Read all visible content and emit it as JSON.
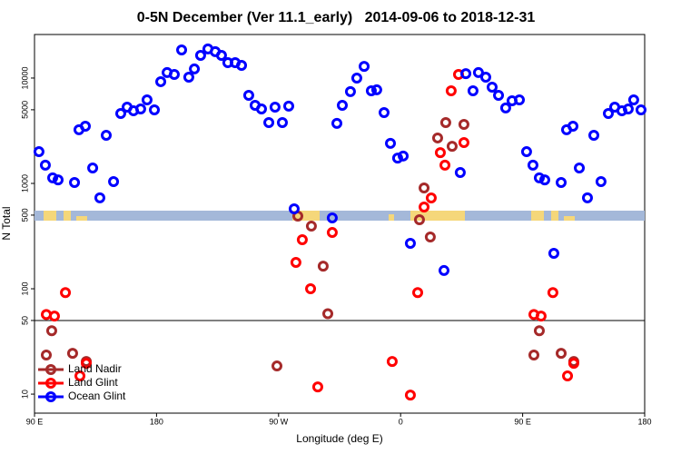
{
  "chart_data": {
    "type": "scatter",
    "title": "0-5N December (Ver 11.1_early)   2014-09-06 to 2018-12-31",
    "x_label": "Longitude (deg E)",
    "y_label": "N Total",
    "xlim": [
      90,
      540
    ],
    "xticks": [
      {
        "value": 90,
        "label": "90 E"
      },
      180,
      {
        "value": 270,
        "label": "90 W"
      },
      {
        "value": 360,
        "label": "0"
      },
      {
        "value": 450,
        "label": "90 E"
      },
      {
        "value": 540,
        "label": "180"
      }
    ],
    "ylim": [
      6.6,
      25900
    ],
    "y_scale": "log",
    "yticks": [
      10,
      50,
      100,
      500,
      1000,
      5000,
      10000
    ],
    "hline": 50,
    "legend": "lower left",
    "series": [
      {
        "name": "Land Nadir",
        "color": "#a52a2a",
        "x": [
          98.7,
          102.7,
          118.1,
          128.2,
          268.8,
          284.2,
          294.2,
          302.9,
          306.3,
          373.9,
          377.3,
          381.9,
          387.3,
          393.3,
          398.0,
          406.7,
          458.3,
          462.3,
          478.4,
          487.7
        ],
        "values": [
          23.5,
          40,
          24.4,
          20.4,
          18.5,
          489,
          393,
          164,
          58,
          452,
          906,
          310,
          2700,
          3780,
          2250,
          3630,
          23.5,
          40,
          24.4,
          20.4
        ]
      },
      {
        "name": "Land Glint",
        "color": "#ff0000",
        "x": [
          98.7,
          104.7,
          112.8,
          123.5,
          128.2,
          282.8,
          287.5,
          293.6,
          298.9,
          309.6,
          353.8,
          367.2,
          372.6,
          377.3,
          382.6,
          389.3,
          392.7,
          397.3,
          402.7,
          406.7,
          458.3,
          463.6,
          472.3,
          483.1,
          487.7
        ],
        "values": [
          57,
          55,
          92,
          14.9,
          19.6,
          178,
          292,
          100,
          11.7,
          342,
          20.4,
          9.8,
          92,
          597,
          728,
          1960,
          1490,
          7570,
          10820,
          2440,
          57,
          55,
          92,
          14.9,
          19.6
        ]
      },
      {
        "name": "Ocean Glint",
        "color": "#0000ff",
        "x": [
          93.3,
          98.0,
          103.4,
          107.4,
          119.5,
          122.8,
          127.5,
          132.9,
          138.2,
          142.9,
          148.3,
          153.6,
          158.3,
          163.0,
          168.3,
          173.0,
          178.4,
          183.1,
          187.8,
          193.1,
          198.5,
          203.8,
          207.9,
          212.5,
          217.9,
          223.3,
          227.9,
          232.6,
          238.0,
          242.7,
          248.0,
          252.7,
          257.4,
          262.8,
          267.4,
          272.8,
          277.5,
          281.5,
          309.6,
          313.0,
          317.0,
          323.0,
          327.7,
          333.1,
          338.4,
          342.4,
          347.8,
          352.5,
          357.8,
          361.9,
          367.2,
          392.0,
          404.0,
          408.1,
          413.4,
          417.4,
          422.8,
          427.5,
          432.2,
          437.5,
          442.2,
          447.6,
          452.9,
          457.6,
          462.3,
          466.3,
          473.0,
          478.4,
          482.4,
          487.1,
          491.8,
          497.8,
          502.5,
          507.8,
          513.2,
          517.9,
          523.2,
          527.9,
          531.9,
          537.3
        ],
        "values": [
          2000,
          1490,
          1130,
          1080,
          1020,
          3230,
          3490,
          1400,
          730,
          2860,
          1040,
          4610,
          5300,
          4890,
          5090,
          6210,
          4990,
          9240,
          11270,
          10820,
          18500,
          10200,
          12200,
          16400,
          18900,
          17800,
          16400,
          14000,
          14000,
          13200,
          6860,
          5510,
          5090,
          3780,
          5300,
          3780,
          5410,
          574,
          470,
          3710,
          5510,
          7430,
          10000,
          12900,
          7570,
          7730,
          4700,
          2400,
          1740,
          1820,
          270,
          149,
          1270,
          11000,
          7570,
          11270,
          10200,
          8200,
          6860,
          5200,
          6080,
          6210,
          2000,
          1490,
          1130,
          1080,
          217,
          1020,
          3230,
          3490,
          1400,
          730,
          2860,
          1040,
          4610,
          5300,
          4890,
          5090,
          6210,
          4990
        ]
      }
    ]
  }
}
